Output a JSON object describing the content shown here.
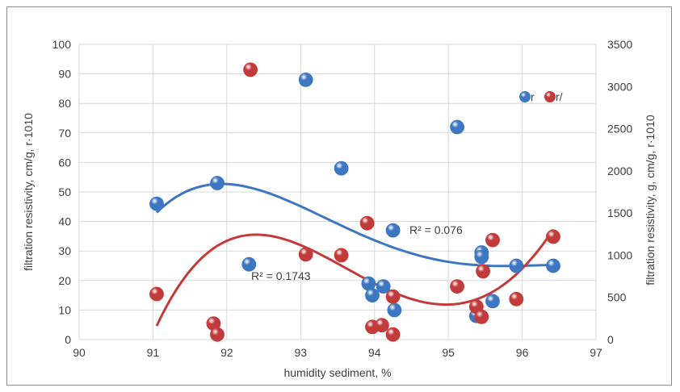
{
  "chart_data": {
    "type": "scatter",
    "title": "",
    "xlabel": "humidity sediment, %",
    "ylabel_left": "filtration resistivity, cm/g, r·1010",
    "ylabel_right": "filtration resistivity, g, cm/g, r·1010",
    "xlim": [
      90,
      97
    ],
    "ylim_left": [
      0,
      100
    ],
    "ylim_right": [
      0,
      3500
    ],
    "x_ticks": [
      "90",
      "91",
      "92",
      "93",
      "94",
      "95",
      "96",
      "97"
    ],
    "y_left_ticks": [
      "0",
      "10",
      "20",
      "30",
      "40",
      "50",
      "60",
      "70",
      "80",
      "90",
      "100"
    ],
    "y_right_ticks": [
      "0",
      "500",
      "1000",
      "1500",
      "2000",
      "2500",
      "3000",
      "3500"
    ],
    "grid": true,
    "legend_position": "top-right",
    "series": [
      {
        "name": "r",
        "axis": "left",
        "color": "#3d77c2",
        "points": [
          [
            91.05,
            46
          ],
          [
            91.87,
            53
          ],
          [
            92.3,
            25.5
          ],
          [
            93.07,
            88
          ],
          [
            93.55,
            58
          ],
          [
            93.92,
            19
          ],
          [
            93.97,
            15
          ],
          [
            94.12,
            18
          ],
          [
            94.25,
            37
          ],
          [
            94.27,
            10
          ],
          [
            95.12,
            72
          ],
          [
            95.38,
            8
          ],
          [
            95.45,
            29.5
          ],
          [
            95.45,
            28
          ],
          [
            95.6,
            13
          ],
          [
            95.92,
            25
          ],
          [
            96.42,
            25
          ]
        ],
        "trendline": {
          "type": "polynomial",
          "r2_label": "R² = 0.076"
        }
      },
      {
        "name": "r/",
        "axis": "right",
        "color": "#c23b3b",
        "points": [
          [
            91.05,
            540
          ],
          [
            91.82,
            190
          ],
          [
            91.87,
            60
          ],
          [
            92.32,
            3200
          ],
          [
            93.07,
            1010
          ],
          [
            93.55,
            1000
          ],
          [
            93.9,
            1380
          ],
          [
            93.97,
            150
          ],
          [
            94.1,
            170
          ],
          [
            94.25,
            510
          ],
          [
            94.25,
            60
          ],
          [
            95.12,
            630
          ],
          [
            95.38,
            390
          ],
          [
            95.45,
            270
          ],
          [
            95.47,
            810
          ],
          [
            95.6,
            1180
          ],
          [
            95.92,
            480
          ],
          [
            96.42,
            1220
          ]
        ],
        "trendline": {
          "type": "polynomial",
          "r2_label": "R² = 0.1743"
        }
      }
    ]
  }
}
